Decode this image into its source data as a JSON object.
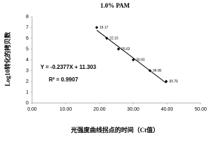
{
  "chart_data": {
    "type": "scatter",
    "title": "1.0% PAM",
    "x_label": "光强度曲线拐点的时间（Ct值）",
    "y_label": "Log10转化的拷贝数",
    "x": [
      19.17,
      22.15,
      25.63,
      30.0,
      34.95,
      39.78
    ],
    "x_labels": [
      "19.17",
      "22.15",
      "25.63",
      "30.00",
      "34.95",
      "39.78"
    ],
    "values": [
      7,
      6,
      5,
      4,
      3,
      2
    ],
    "color": "#000000",
    "trendline": {
      "slope": -0.2377,
      "intercept": 11.303,
      "color": "#000000"
    },
    "annotations": [
      "Y = -0.2377X + 11.303",
      "R² = 0.9907"
    ],
    "xlim": [
      0,
      50
    ],
    "xticks": [
      {
        "value": 0,
        "label": "0.00"
      },
      {
        "value": 10,
        "label": "10.00"
      },
      {
        "value": 20,
        "label": "20.00"
      },
      {
        "value": 30,
        "label": "30.00"
      },
      {
        "value": 40,
        "label": "40.00"
      },
      {
        "value": 50,
        "label": "50.00"
      }
    ],
    "ylim": [
      0,
      8
    ],
    "yticks": [
      0,
      1,
      2,
      3,
      4,
      5,
      6,
      7,
      8
    ],
    "grid": false
  }
}
